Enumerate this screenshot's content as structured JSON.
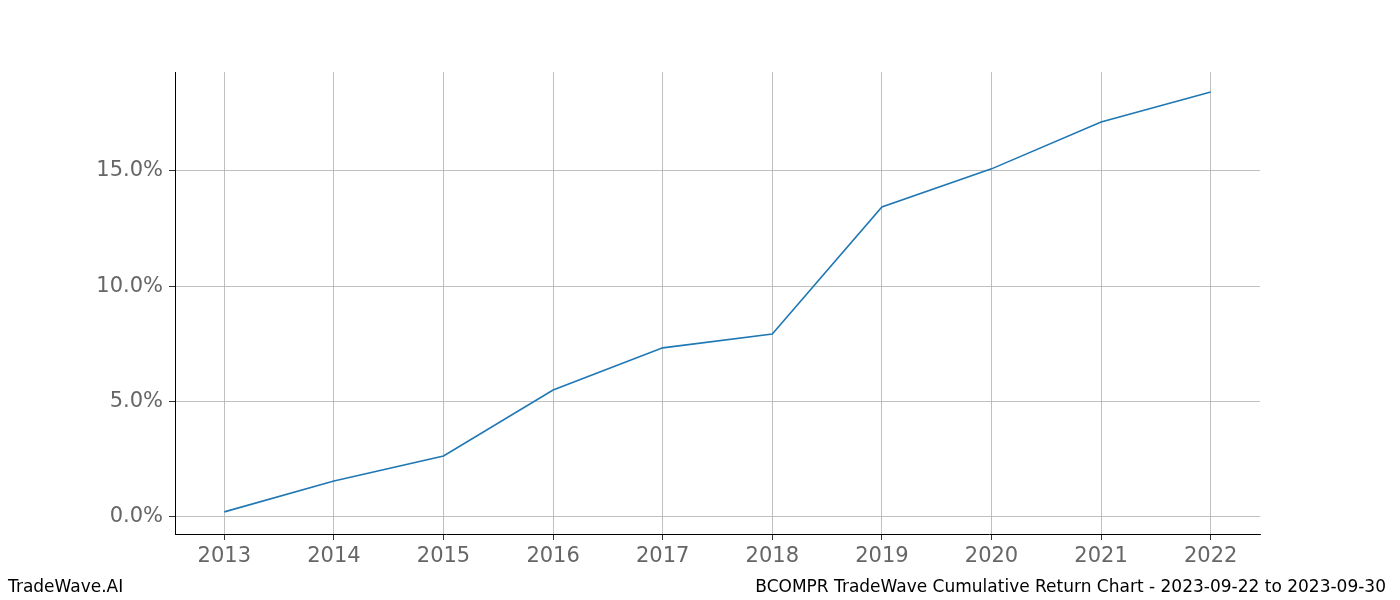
{
  "chart_data": {
    "type": "line",
    "x": [
      2013,
      2014,
      2015,
      2016,
      2017,
      2018,
      2019,
      2020,
      2021,
      2022
    ],
    "values": [
      0.22,
      1.56,
      2.64,
      5.5,
      7.33,
      7.93,
      13.44,
      15.09,
      17.12,
      18.42
    ],
    "color": "#1f77b4",
    "xlim": [
      2012.55,
      2022.45
    ],
    "xticks": [
      2013,
      2014,
      2015,
      2016,
      2017,
      2018,
      2019,
      2020,
      2021,
      2022
    ],
    "ylim": [
      -0.74,
      19.29
    ],
    "yticks": [
      {
        "value": 0,
        "label": "0.0%"
      },
      {
        "value": 5,
        "label": "5.0%"
      },
      {
        "value": 10,
        "label": "10.0%"
      },
      {
        "value": 15,
        "label": "15.0%"
      }
    ],
    "grid": true,
    "annotations": [
      "TradeWave.AI",
      "BCOMPR TradeWave Cumulative Return Chart - 2023-09-22 to 2023-09-30"
    ]
  }
}
